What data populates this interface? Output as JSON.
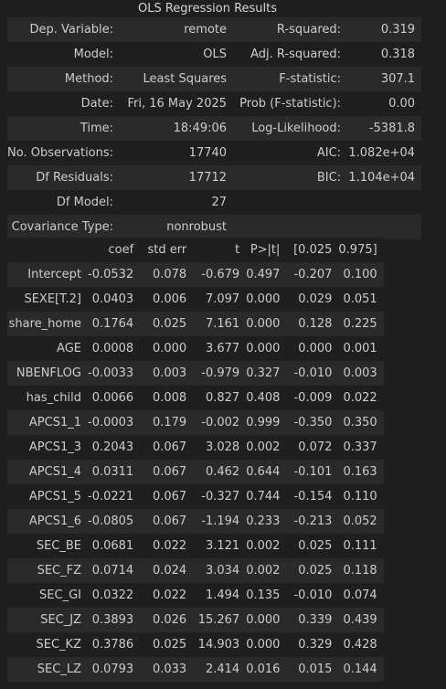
{
  "caption": "OLS Regression Results",
  "summary": [
    [
      "Dep. Variable:",
      "remote",
      "R-squared:",
      "0.319"
    ],
    [
      "Model:",
      "OLS",
      "Adj. R-squared:",
      "0.318"
    ],
    [
      "Method:",
      "Least Squares",
      "F-statistic:",
      "307.1"
    ],
    [
      "Date:",
      "Fri, 16 May 2025",
      "Prob (F-statistic):",
      "0.00"
    ],
    [
      "Time:",
      "18:49:06",
      "Log-Likelihood:",
      "-5381.8"
    ],
    [
      "No. Observations:",
      "17740",
      "AIC:",
      "1.082e+04"
    ],
    [
      "Df Residuals:",
      "17712",
      "BIC:",
      "1.104e+04"
    ],
    [
      "Df Model:",
      "27",
      "",
      ""
    ],
    [
      "Covariance Type:",
      "nonrobust",
      "",
      ""
    ]
  ],
  "coef_header": [
    "",
    "coef",
    "std err",
    "t",
    "P>|t|",
    "[0.025",
    "0.975]"
  ],
  "coef_rows": [
    [
      "Intercept",
      "-0.0532",
      "0.078",
      "-0.679",
      "0.497",
      "-0.207",
      "0.100"
    ],
    [
      "SEXE[T.2]",
      "0.0403",
      "0.006",
      "7.097",
      "0.000",
      "0.029",
      "0.051"
    ],
    [
      "share_home",
      "0.1764",
      "0.025",
      "7.161",
      "0.000",
      "0.128",
      "0.225"
    ],
    [
      "AGE",
      "0.0008",
      "0.000",
      "3.677",
      "0.000",
      "0.000",
      "0.001"
    ],
    [
      "NBENFLOG",
      "-0.0033",
      "0.003",
      "-0.979",
      "0.327",
      "-0.010",
      "0.003"
    ],
    [
      "has_child",
      "0.0066",
      "0.008",
      "0.827",
      "0.408",
      "-0.009",
      "0.022"
    ],
    [
      "APCS1_1",
      "-0.0003",
      "0.179",
      "-0.002",
      "0.999",
      "-0.350",
      "0.350"
    ],
    [
      "APCS1_3",
      "0.2043",
      "0.067",
      "3.028",
      "0.002",
      "0.072",
      "0.337"
    ],
    [
      "APCS1_4",
      "0.0311",
      "0.067",
      "0.462",
      "0.644",
      "-0.101",
      "0.163"
    ],
    [
      "APCS1_5",
      "-0.0221",
      "0.067",
      "-0.327",
      "0.744",
      "-0.154",
      "0.110"
    ],
    [
      "APCS1_6",
      "-0.0805",
      "0.067",
      "-1.194",
      "0.233",
      "-0.213",
      "0.052"
    ],
    [
      "SEC_BE",
      "0.0681",
      "0.022",
      "3.121",
      "0.002",
      "0.025",
      "0.111"
    ],
    [
      "SEC_FZ",
      "0.0714",
      "0.024",
      "3.034",
      "0.002",
      "0.025",
      "0.118"
    ],
    [
      "SEC_GI",
      "0.0322",
      "0.022",
      "1.494",
      "0.135",
      "-0.010",
      "0.074"
    ],
    [
      "SEC_JZ",
      "0.3893",
      "0.026",
      "15.267",
      "0.000",
      "0.339",
      "0.439"
    ],
    [
      "SEC_KZ",
      "0.3786",
      "0.025",
      "14.903",
      "0.000",
      "0.329",
      "0.428"
    ],
    [
      "SEC_LZ",
      "0.0793",
      "0.033",
      "2.414",
      "0.016",
      "0.015",
      "0.144"
    ]
  ],
  "colors": {
    "background": "#1f1f1f",
    "stripe": "#2a2a2a",
    "text": "#cccccc"
  }
}
